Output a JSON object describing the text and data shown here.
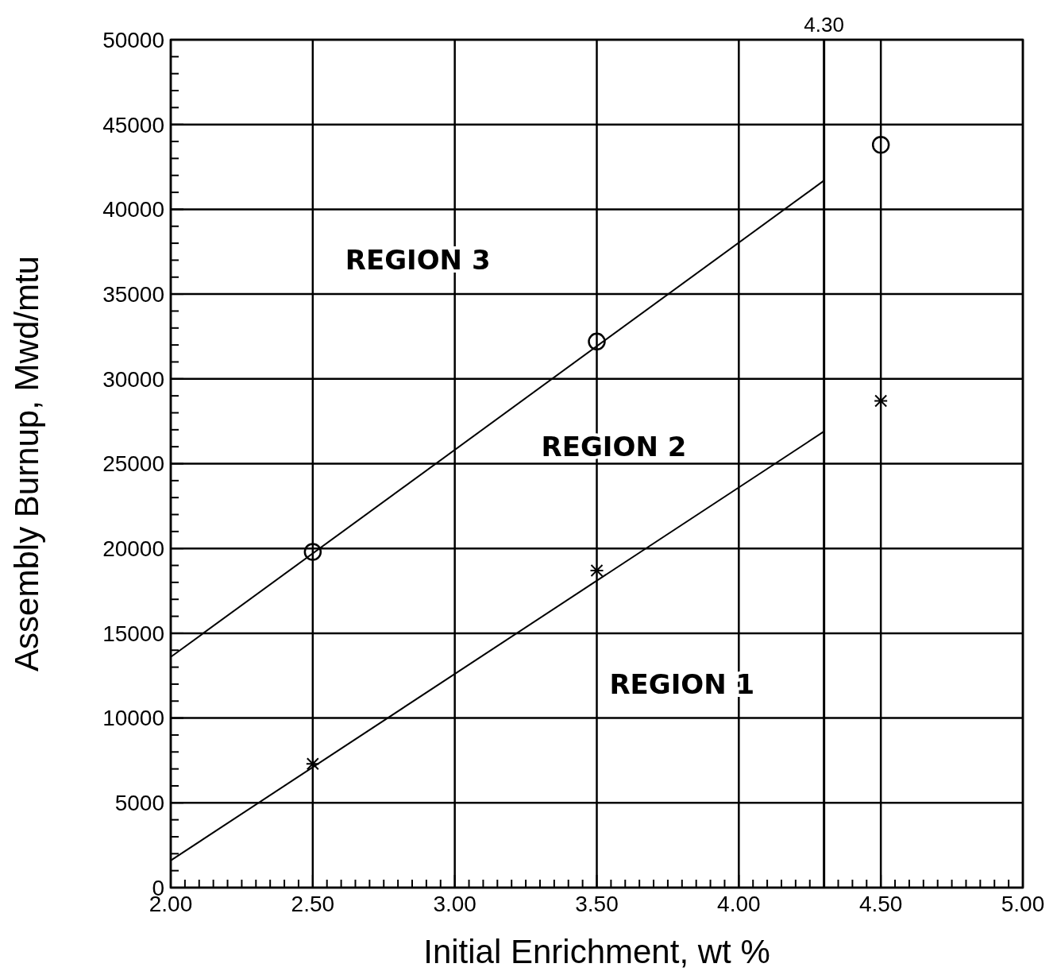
{
  "chart_data": {
    "type": "line",
    "xlabel": "Initial Enrichment,  wt %",
    "ylabel": "Assembly  Burnup,  Mwd/mtu",
    "xlim": [
      2,
      5
    ],
    "ylim": [
      0,
      50000
    ],
    "xticks": [
      {
        "value": 2,
        "label": "2.00"
      },
      {
        "value": 2.05,
        "label": null
      },
      {
        "value": 2.1,
        "label": null
      },
      {
        "value": 2.15,
        "label": null
      },
      {
        "value": 2.2,
        "label": null
      },
      {
        "value": 2.25,
        "label": null
      },
      {
        "value": 2.3,
        "label": null
      },
      {
        "value": 2.35,
        "label": null
      },
      {
        "value": 2.4,
        "label": null
      },
      {
        "value": 2.45,
        "label": null
      },
      {
        "value": 2.5,
        "label": "2.50"
      },
      {
        "value": 2.55,
        "label": null
      },
      {
        "value": 2.6,
        "label": null
      },
      {
        "value": 2.65,
        "label": null
      },
      {
        "value": 2.7,
        "label": null
      },
      {
        "value": 2.75,
        "label": null
      },
      {
        "value": 2.8,
        "label": null
      },
      {
        "value": 2.85,
        "label": null
      },
      {
        "value": 2.9,
        "label": null
      },
      {
        "value": 2.95,
        "label": null
      },
      {
        "value": 3,
        "label": "3.00"
      },
      {
        "value": 3.05,
        "label": null
      },
      {
        "value": 3.1,
        "label": null
      },
      {
        "value": 3.15,
        "label": null
      },
      {
        "value": 3.2,
        "label": null
      },
      {
        "value": 3.25,
        "label": null
      },
      {
        "value": 3.3,
        "label": null
      },
      {
        "value": 3.35,
        "label": null
      },
      {
        "value": 3.4,
        "label": null
      },
      {
        "value": 3.45,
        "label": null
      },
      {
        "value": 3.5,
        "label": "3.50"
      },
      {
        "value": 3.55,
        "label": null
      },
      {
        "value": 3.6,
        "label": null
      },
      {
        "value": 3.65,
        "label": null
      },
      {
        "value": 3.7,
        "label": null
      },
      {
        "value": 3.75,
        "label": null
      },
      {
        "value": 3.8,
        "label": null
      },
      {
        "value": 3.85,
        "label": null
      },
      {
        "value": 3.9,
        "label": null
      },
      {
        "value": 3.95,
        "label": null
      },
      {
        "value": 4,
        "label": "4.00"
      },
      {
        "value": 4.05,
        "label": null
      },
      {
        "value": 4.1,
        "label": null
      },
      {
        "value": 4.15,
        "label": null
      },
      {
        "value": 4.2,
        "label": null
      },
      {
        "value": 4.25,
        "label": null
      },
      {
        "value": 4.35,
        "label": null
      },
      {
        "value": 4.4,
        "label": null
      },
      {
        "value": 4.45,
        "label": null
      },
      {
        "value": 4.5,
        "label": "4.50"
      },
      {
        "value": 4.55,
        "label": null
      },
      {
        "value": 4.6,
        "label": null
      },
      {
        "value": 4.65,
        "label": null
      },
      {
        "value": 4.7,
        "label": null
      },
      {
        "value": 4.75,
        "label": null
      },
      {
        "value": 4.8,
        "label": null
      },
      {
        "value": 4.85,
        "label": null
      },
      {
        "value": 4.9,
        "label": null
      },
      {
        "value": 4.95,
        "label": null
      },
      {
        "value": 5,
        "label": "5.00"
      }
    ],
    "yticks": [
      0,
      {
        "value": 1000,
        "label": null
      },
      {
        "value": 2000,
        "label": null
      },
      {
        "value": 3000,
        "label": null
      },
      {
        "value": 4000,
        "label": null
      },
      5000,
      {
        "value": 6000,
        "label": null
      },
      {
        "value": 7000,
        "label": null
      },
      {
        "value": 8000,
        "label": null
      },
      {
        "value": 9000,
        "label": null
      },
      10000,
      {
        "value": 11000,
        "label": null
      },
      {
        "value": 12000,
        "label": null
      },
      {
        "value": 13000,
        "label": null
      },
      {
        "value": 14000,
        "label": null
      },
      15000,
      {
        "value": 16000,
        "label": null
      },
      {
        "value": 17000,
        "label": null
      },
      {
        "value": 18000,
        "label": null
      },
      {
        "value": 19000,
        "label": null
      },
      20000,
      {
        "value": 21000,
        "label": null
      },
      {
        "value": 22000,
        "label": null
      },
      {
        "value": 23000,
        "label": null
      },
      {
        "value": 24000,
        "label": null
      },
      25000,
      {
        "value": 26000,
        "label": null
      },
      {
        "value": 27000,
        "label": null
      },
      {
        "value": 28000,
        "label": null
      },
      {
        "value": 29000,
        "label": null
      },
      30000,
      {
        "value": 31000,
        "label": null
      },
      {
        "value": 32000,
        "label": null
      },
      {
        "value": 33000,
        "label": null
      },
      {
        "value": 34000,
        "label": null
      },
      35000,
      {
        "value": 36000,
        "label": null
      },
      {
        "value": 37000,
        "label": null
      },
      {
        "value": 38000,
        "label": null
      },
      {
        "value": 39000,
        "label": null
      },
      40000,
      {
        "value": 41000,
        "label": null
      },
      {
        "value": 42000,
        "label": null
      },
      {
        "value": 43000,
        "label": null
      },
      {
        "value": 44000,
        "label": null
      },
      45000,
      {
        "value": 46000,
        "label": null
      },
      {
        "value": 47000,
        "label": null
      },
      {
        "value": 48000,
        "label": null
      },
      {
        "value": 49000,
        "label": null
      },
      50000
    ],
    "grid": true,
    "series": [
      {
        "color": "#000000",
        "marker": "none",
        "line_style": "solid",
        "x": [
          2.0,
          4.3
        ],
        "values": [
          13600,
          41700
        ]
      },
      {
        "color": "#000000",
        "marker": "none",
        "line_style": "solid",
        "x": [
          2.0,
          4.3
        ],
        "values": [
          1600,
          26900
        ]
      },
      {
        "type": "scatter",
        "color": "#000000",
        "marker": "circle",
        "x": [
          2.5,
          3.5,
          4.5
        ],
        "values": [
          19800,
          32200,
          43800
        ]
      },
      {
        "type": "scatter",
        "color": "#000000",
        "marker": "cross",
        "x": [
          2.5,
          3.5,
          4.5
        ],
        "values": [
          7300,
          18700,
          28700
        ]
      }
    ],
    "ref_lines": [
      {
        "axis": "x",
        "value": 4.3,
        "label": "4.30",
        "color": "#000000",
        "line_style": "solid"
      }
    ],
    "annotations": [
      "REGION 3",
      "REGION 2",
      "REGION 1"
    ]
  }
}
